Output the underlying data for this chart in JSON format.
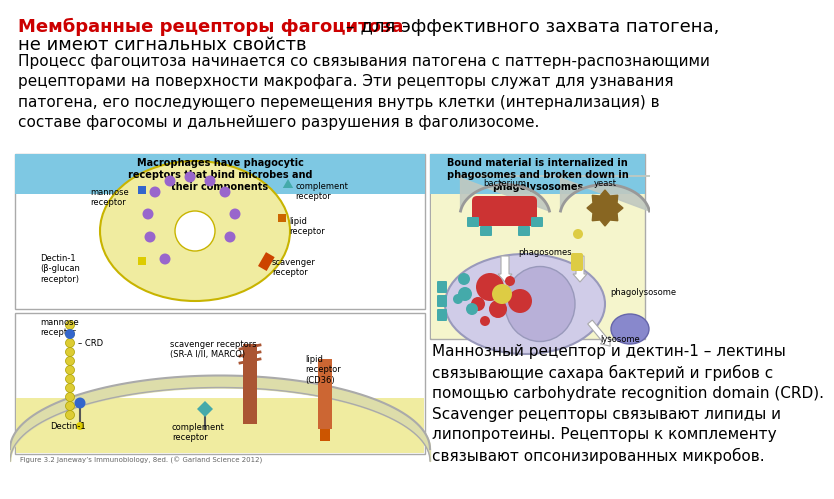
{
  "title_red": "Мембранные рецепторы фагоцитоза",
  "title_suffix": " – для эффективного захвата патогена,",
  "title_line2": "не имеют сигнальных свойств",
  "body_text": "Процесс фагоцитоза начинается со связывания патогена с паттерн-распознающими\nрецепторами на поверхности макрофага. Эти рецепторы служат для узнавания\nпатогена, его последующего перемещения внутрь клетки (интернализация) в\nсоставе фагосомы и дальнейшего разрушения в фаголизосоме.",
  "caption_text": "Маннозный рецептор и дектин-1 – лектины\nсвязывающие сахара бактерий и грибов с\nпомощью carbohydrate recognition domain (CRD).\nScavenger рецепторы связывают липиды и\nлипопротеины. Рецепторы к комплементу\nсвязывают опсонизированных микробов.",
  "fig_caption": "Figure 3.2 Janeway’s Immunobiology, 8ed. (© Garland Science 2012)",
  "header_left": "Macrophages have phagocytic\nreceptors that bind microbes and\ntheir components",
  "header_right": "Bound material is internalized in\nphagosomes and broken down in\nphagolysosomes",
  "bg_color": "#ffffff",
  "title_color": "#cc0000",
  "body_color": "#000000",
  "header_bg": "#7ec8e3",
  "box_bg": "#f5f5dc",
  "box_border": "#aaaaaa",
  "cell_color": "#f0eca0",
  "cell_border": "#c8b400",
  "nucleus_color": "#ffffff",
  "dot_color": "#9966cc",
  "mannose_color": "#3366cc",
  "complement_color": "#44aaaa",
  "lipid_color": "#cc6600",
  "scavenger_color": "#cc4400",
  "dectin_color": "#ddcc00",
  "bead_color": "#ddcc33",
  "bead_border": "#aaa000",
  "membrane_color": "#ddddaa",
  "membrane_border": "#aaaaaa",
  "bacterium_color": "#cc3333",
  "yeast_color": "#886622",
  "phagosome_color": "#d0cce8",
  "lysosome_color": "#8888cc",
  "arrow_color": "#ffffff",
  "teal_receptor": "#44aaaa",
  "yellow_dot": "#ddcc44",
  "title_fontsize": 13,
  "body_fontsize": 11,
  "caption_fontsize": 11,
  "header_fontsize": 7,
  "diagram_fontsize": 6
}
